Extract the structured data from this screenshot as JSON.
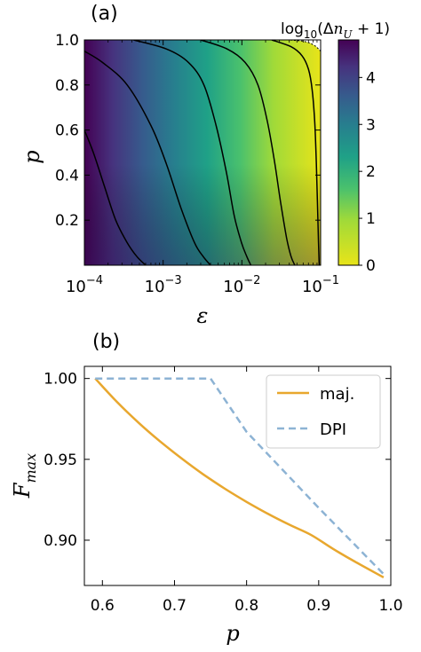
{
  "chart_data": [
    {
      "panel_label": "(a)",
      "type": "heatmap",
      "xlabel": "ε",
      "ylabel": "p",
      "xscale": "log",
      "xlim": [
        0.0001,
        0.1
      ],
      "ylim": [
        0.0,
        1.0
      ],
      "x_ticks": [
        {
          "value": 0.0001,
          "base": "10",
          "exp": "−4"
        },
        {
          "value": 0.001,
          "base": "10",
          "exp": "−3"
        },
        {
          "value": 0.01,
          "base": "10",
          "exp": "−2"
        },
        {
          "value": 0.1,
          "base": "10",
          "exp": "−1"
        }
      ],
      "y_ticks": [
        {
          "value": 0.2,
          "label": "0.2"
        },
        {
          "value": 0.4,
          "label": "0.4"
        },
        {
          "value": 0.6,
          "label": "0.6"
        },
        {
          "value": 0.8,
          "label": "0.8"
        },
        {
          "value": 1.0,
          "label": "1.0"
        }
      ],
      "colorbar": {
        "label_prefix": "log",
        "label_sub": "10",
        "label_body": "(Δ",
        "label_n": "n",
        "label_nsub": "U",
        "label_suffix": " + 1)",
        "range": [
          0,
          4.8
        ],
        "colormap": "viridis (reversed)",
        "ticks": [
          {
            "value": 0,
            "label": "0"
          },
          {
            "value": 1,
            "label": "1"
          },
          {
            "value": 2,
            "label": "2"
          },
          {
            "value": 3,
            "label": "3"
          },
          {
            "value": 4,
            "label": "4"
          }
        ]
      },
      "contours": [
        {
          "level": 4,
          "points": [
            [
              0.0001,
              0.6
            ],
            [
              0.00013,
              0.5
            ],
            [
              0.00018,
              0.35
            ],
            [
              0.00025,
              0.2
            ],
            [
              0.00035,
              0.1
            ],
            [
              0.00046,
              0.04
            ],
            [
              0.0006,
              0.0
            ]
          ]
        },
        {
          "level": 3,
          "points": [
            [
              0.0001,
              0.95
            ],
            [
              0.00017,
              0.9
            ],
            [
              0.00035,
              0.8
            ],
            [
              0.0007,
              0.62
            ],
            [
              0.0011,
              0.45
            ],
            [
              0.0017,
              0.25
            ],
            [
              0.0025,
              0.1
            ],
            [
              0.0032,
              0.04
            ],
            [
              0.004,
              0.0
            ]
          ]
        },
        {
          "level": 2,
          "points": [
            [
              0.00042,
              1.0
            ],
            [
              0.0011,
              0.96
            ],
            [
              0.0021,
              0.9
            ],
            [
              0.0033,
              0.8
            ],
            [
              0.0047,
              0.62
            ],
            [
              0.0063,
              0.42
            ],
            [
              0.008,
              0.22
            ],
            [
              0.0099,
              0.1
            ],
            [
              0.0115,
              0.04
            ],
            [
              0.013,
              0.0
            ]
          ]
        },
        {
          "level": 1,
          "points": [
            [
              0.003,
              1.0
            ],
            [
              0.0065,
              0.96
            ],
            [
              0.011,
              0.9
            ],
            [
              0.016,
              0.8
            ],
            [
              0.021,
              0.64
            ],
            [
              0.026,
              0.46
            ],
            [
              0.031,
              0.28
            ],
            [
              0.037,
              0.12
            ],
            [
              0.042,
              0.04
            ],
            [
              0.047,
              0.0
            ]
          ]
        },
        {
          "level": 0.3,
          "points": [
            [
              0.024,
              1.0
            ],
            [
              0.042,
              0.97
            ],
            [
              0.058,
              0.93
            ],
            [
              0.07,
              0.87
            ],
            [
              0.078,
              0.78
            ],
            [
              0.084,
              0.64
            ],
            [
              0.088,
              0.46
            ],
            [
              0.091,
              0.28
            ],
            [
              0.094,
              0.1
            ],
            [
              0.096,
              0.0
            ]
          ]
        }
      ],
      "undefined_region_boundary": [
        [
          0.0001,
          1.0
        ],
        [
          0.04,
          1.0
        ],
        [
          0.06,
          0.995
        ],
        [
          0.075,
          0.985
        ],
        [
          0.088,
          0.97
        ],
        [
          0.1,
          0.95
        ]
      ]
    },
    {
      "panel_label": "(b)",
      "type": "line",
      "xlabel": "p",
      "ylabel_main": "F",
      "ylabel_sub": "max",
      "xlim": [
        0.575,
        1.0
      ],
      "ylim": [
        0.872,
        1.0075
      ],
      "x_ticks": [
        {
          "value": 0.6,
          "label": "0.6"
        },
        {
          "value": 0.7,
          "label": "0.7"
        },
        {
          "value": 0.8,
          "label": "0.8"
        },
        {
          "value": 0.9,
          "label": "0.9"
        },
        {
          "value": 1.0,
          "label": "1.0"
        }
      ],
      "y_ticks": [
        {
          "value": 0.9,
          "label": "0.90"
        },
        {
          "value": 0.95,
          "label": "0.95"
        },
        {
          "value": 1.0,
          "label": "1.00"
        }
      ],
      "legend_position": "top-right",
      "series": [
        {
          "name": "maj.",
          "color": "#e8a72e",
          "style": "solid",
          "x": [
            0.59,
            0.62,
            0.65,
            0.68,
            0.71,
            0.74,
            0.77,
            0.8,
            0.83,
            0.86,
            0.89,
            0.92,
            0.95,
            0.99
          ],
          "y": [
            1.0,
            0.9856,
            0.9727,
            0.9611,
            0.9505,
            0.9407,
            0.9318,
            0.9237,
            0.9162,
            0.9094,
            0.9031,
            0.8946,
            0.8868,
            0.877
          ]
        },
        {
          "name": "DPI",
          "color": "#8db3d4",
          "style": "dashed",
          "x": [
            0.59,
            0.75,
            0.8,
            0.9,
            0.99
          ],
          "y": [
            1.0,
            1.0,
            0.967,
            0.92,
            0.879
          ]
        }
      ]
    }
  ]
}
